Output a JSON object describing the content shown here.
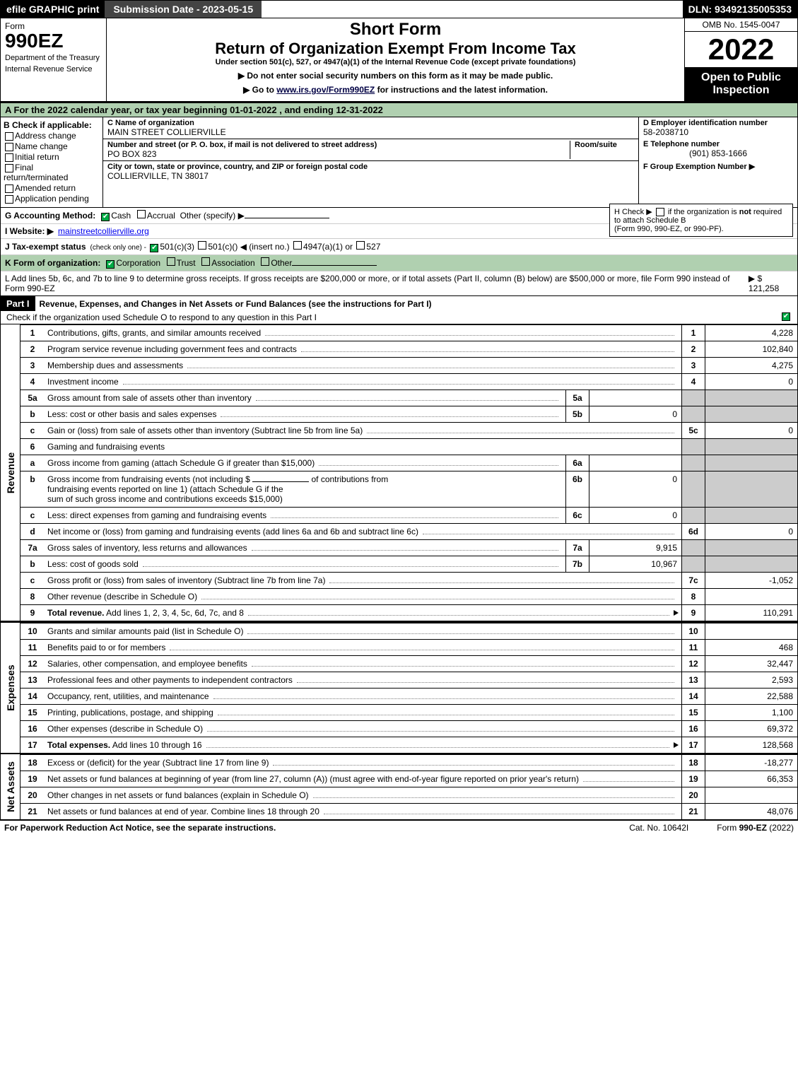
{
  "topbar": {
    "efile": "efile GRAPHIC print",
    "submission": "Submission Date - 2023-05-15",
    "dln": "DLN: 93492135005353"
  },
  "header": {
    "form_word": "Form",
    "form_number": "990EZ",
    "dept1": "Department of the Treasury",
    "dept2": "Internal Revenue Service",
    "title1": "Short Form",
    "title2": "Return of Organization Exempt From Income Tax",
    "subtitle": "Under section 501(c), 527, or 4947(a)(1) of the Internal Revenue Code (except private foundations)",
    "line1": "▶ Do not enter social security numbers on this form as it may be made public.",
    "line2_pre": "▶ Go to ",
    "line2_link": "www.irs.gov/Form990EZ",
    "line2_post": " for instructions and the latest information.",
    "omb": "OMB No. 1545-0047",
    "year": "2022",
    "open": "Open to Public Inspection"
  },
  "a": "A  For the 2022 calendar year, or tax year beginning 01-01-2022  , and ending 12-31-2022",
  "b": {
    "hdr": "B  Check if applicable:",
    "items": [
      "Address change",
      "Name change",
      "Initial return",
      "Final return/terminated",
      "Amended return",
      "Application pending"
    ]
  },
  "c": {
    "name_hdr": "C Name of organization",
    "name": "MAIN STREET COLLIERVILLE",
    "addr_hdr": "Number and street (or P. O. box, if mail is not delivered to street address)",
    "roomsuite_hdr": "Room/suite",
    "addr": "PO BOX 823",
    "city_hdr": "City or town, state or province, country, and ZIP or foreign postal code",
    "city": "COLLIERVILLE, TN  38017"
  },
  "d": {
    "hdr": "D Employer identification number",
    "val": "58-2038710"
  },
  "e": {
    "hdr": "E Telephone number",
    "val": "(901) 853-1666"
  },
  "f": {
    "hdr": "F Group Exemption Number  ▶",
    "val": ""
  },
  "g": {
    "label": "G Accounting Method:",
    "cash": "Cash",
    "accrual": "Accrual",
    "other": "Other (specify) ▶"
  },
  "h": {
    "text1": "H  Check ▶ ",
    "text2": " if the organization is ",
    "not": "not",
    "text3": " required to attach Schedule B",
    "text4": "(Form 990, 990-EZ, or 990-PF)."
  },
  "i": {
    "label": "I Website: ▶",
    "val": "mainstreetcollierville.org"
  },
  "j": {
    "label": "J Tax-exempt status",
    "sub": "(check only one) -",
    "opt1": "501(c)(3)",
    "opt2": "501(c)( ",
    "opt2b": ") ◀ (insert no.)",
    "opt3": "4947(a)(1) or",
    "opt4": "527"
  },
  "k": {
    "label": "K Form of organization:",
    "opts": [
      "Corporation",
      "Trust",
      "Association",
      "Other"
    ]
  },
  "l": {
    "text": "L Add lines 5b, 6c, and 7b to line 9 to determine gross receipts. If gross receipts are $200,000 or more, or if total assets (Part II, column (B) below) are $500,000 or more, file Form 990 instead of Form 990-EZ",
    "amount": "▶ $ 121,258"
  },
  "part1": {
    "label": "Part I",
    "title": "Revenue, Expenses, and Changes in Net Assets or Fund Balances (see the instructions for Part I)",
    "check": "Check if the organization used Schedule O to respond to any question in this Part I"
  },
  "sidelabels": {
    "revenue": "Revenue",
    "expenses": "Expenses",
    "netassets": "Net Assets"
  },
  "lines": {
    "l1": {
      "num": "1",
      "desc": "Contributions, gifts, grants, and similar amounts received",
      "rnum": "1",
      "rval": "4,228"
    },
    "l2": {
      "num": "2",
      "desc": "Program service revenue including government fees and contracts",
      "rnum": "2",
      "rval": "102,840"
    },
    "l3": {
      "num": "3",
      "desc": "Membership dues and assessments",
      "rnum": "3",
      "rval": "4,275"
    },
    "l4": {
      "num": "4",
      "desc": "Investment income",
      "rnum": "4",
      "rval": "0"
    },
    "l5a": {
      "num": "5a",
      "desc": "Gross amount from sale of assets other than inventory",
      "subnum": "5a",
      "subval": ""
    },
    "l5b": {
      "num": "b",
      "desc": "Less: cost or other basis and sales expenses",
      "subnum": "5b",
      "subval": "0"
    },
    "l5c": {
      "num": "c",
      "desc": "Gain or (loss) from sale of assets other than inventory (Subtract line 5b from line 5a)",
      "rnum": "5c",
      "rval": "0"
    },
    "l6": {
      "num": "6",
      "desc": "Gaming and fundraising events"
    },
    "l6a": {
      "num": "a",
      "desc": "Gross income from gaming (attach Schedule G if greater than $15,000)",
      "subnum": "6a",
      "subval": ""
    },
    "l6b": {
      "num": "b",
      "desc_a": "Gross income from fundraising events (not including $",
      "desc_b": "of contributions from",
      "desc_c": "fundraising events reported on line 1) (attach Schedule G if the",
      "desc_d": "sum of such gross income and contributions exceeds $15,000)",
      "subnum": "6b",
      "subval": "0"
    },
    "l6c": {
      "num": "c",
      "desc": "Less: direct expenses from gaming and fundraising events",
      "subnum": "6c",
      "subval": "0"
    },
    "l6d": {
      "num": "d",
      "desc": "Net income or (loss) from gaming and fundraising events (add lines 6a and 6b and subtract line 6c)",
      "rnum": "6d",
      "rval": "0"
    },
    "l7a": {
      "num": "7a",
      "desc": "Gross sales of inventory, less returns and allowances",
      "subnum": "7a",
      "subval": "9,915"
    },
    "l7b": {
      "num": "b",
      "desc": "Less: cost of goods sold",
      "subnum": "7b",
      "subval": "10,967"
    },
    "l7c": {
      "num": "c",
      "desc": "Gross profit or (loss) from sales of inventory (Subtract line 7b from line 7a)",
      "rnum": "7c",
      "rval": "-1,052"
    },
    "l8": {
      "num": "8",
      "desc": "Other revenue (describe in Schedule O)",
      "rnum": "8",
      "rval": ""
    },
    "l9": {
      "num": "9",
      "desc": "Total revenue. Add lines 1, 2, 3, 4, 5c, 6d, 7c, and 8",
      "rnum": "9",
      "rval": "110,291",
      "bold": true,
      "arrow": true
    },
    "l10": {
      "num": "10",
      "desc": "Grants and similar amounts paid (list in Schedule O)",
      "rnum": "10",
      "rval": ""
    },
    "l11": {
      "num": "11",
      "desc": "Benefits paid to or for members",
      "rnum": "11",
      "rval": "468"
    },
    "l12": {
      "num": "12",
      "desc": "Salaries, other compensation, and employee benefits",
      "rnum": "12",
      "rval": "32,447"
    },
    "l13": {
      "num": "13",
      "desc": "Professional fees and other payments to independent contractors",
      "rnum": "13",
      "rval": "2,593"
    },
    "l14": {
      "num": "14",
      "desc": "Occupancy, rent, utilities, and maintenance",
      "rnum": "14",
      "rval": "22,588"
    },
    "l15": {
      "num": "15",
      "desc": "Printing, publications, postage, and shipping",
      "rnum": "15",
      "rval": "1,100"
    },
    "l16": {
      "num": "16",
      "desc": "Other expenses (describe in Schedule O)",
      "rnum": "16",
      "rval": "69,372"
    },
    "l17": {
      "num": "17",
      "desc": "Total expenses. Add lines 10 through 16",
      "rnum": "17",
      "rval": "128,568",
      "bold": true,
      "arrow": true
    },
    "l18": {
      "num": "18",
      "desc": "Excess or (deficit) for the year (Subtract line 17 from line 9)",
      "rnum": "18",
      "rval": "-18,277"
    },
    "l19": {
      "num": "19",
      "desc": "Net assets or fund balances at beginning of year (from line 27, column (A)) (must agree with end-of-year figure reported on prior year's return)",
      "rnum": "19",
      "rval": "66,353"
    },
    "l20": {
      "num": "20",
      "desc": "Other changes in net assets or fund balances (explain in Schedule O)",
      "rnum": "20",
      "rval": ""
    },
    "l21": {
      "num": "21",
      "desc": "Net assets or fund balances at end of year. Combine lines 18 through 20",
      "rnum": "21",
      "rval": "48,076"
    }
  },
  "footer": {
    "left": "For Paperwork Reduction Act Notice, see the separate instructions.",
    "center": "Cat. No. 10642I",
    "right_pre": "Form ",
    "right_bold": "990-EZ",
    "right_post": " (2022)"
  },
  "colors": {
    "greenbg": "#b0d0b0",
    "greycell": "#cccccc",
    "black": "#000000",
    "checkgreen": "#00aa44"
  }
}
